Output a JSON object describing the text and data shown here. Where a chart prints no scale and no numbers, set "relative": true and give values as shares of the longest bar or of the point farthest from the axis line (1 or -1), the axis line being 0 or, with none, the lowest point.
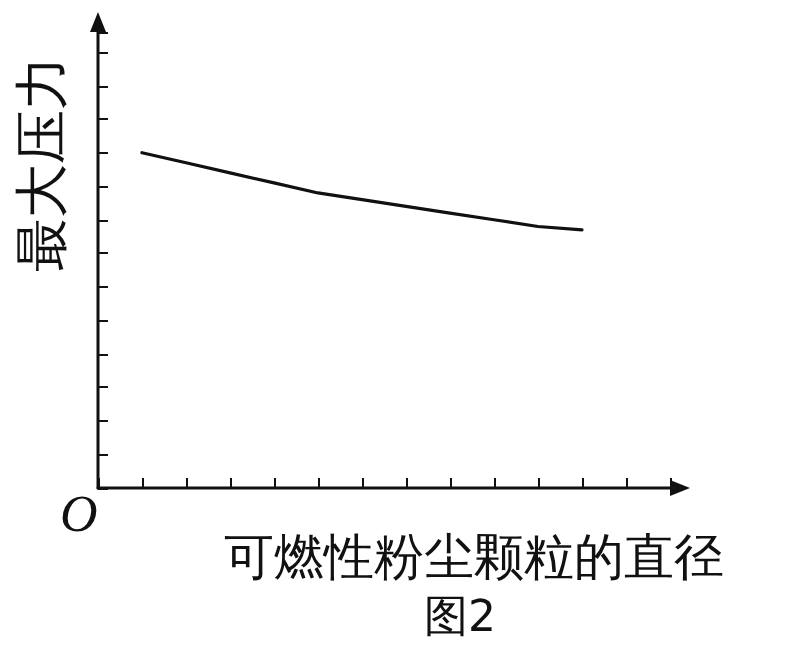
{
  "chart_data": {
    "type": "line",
    "relative": true,
    "xlabel": "可燃性粉尘颗粒的直径",
    "ylabel": "最大压力",
    "annotations": [
      "O",
      "图2"
    ],
    "categories": [
      null,
      null,
      null,
      null,
      null,
      null,
      null,
      null,
      null,
      null,
      null,
      null,
      null,
      null
    ],
    "series": [
      {
        "color": "#111111",
        "values": [
          null,
          1.0,
          0.97,
          0.94,
          0.91,
          0.88,
          0.86,
          0.84,
          0.82,
          0.8,
          0.78,
          0.77,
          null,
          null
        ]
      }
    ],
    "grid": false,
    "marker": "none",
    "line_style": "solid"
  }
}
